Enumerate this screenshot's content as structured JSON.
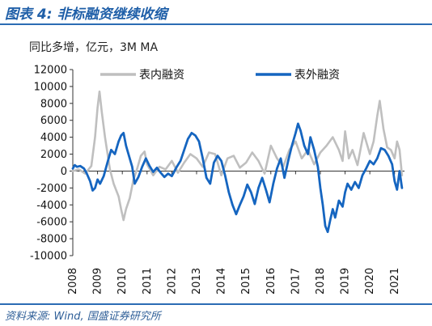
{
  "header": {
    "title": "图表 4: 非标融资继续收缩"
  },
  "footer": {
    "source": "资料来源: Wind, 国盛证券研究所"
  },
  "colors": {
    "accent": "#2b6cb4",
    "series_inner": "#bfbfbf",
    "series_outer": "#1565c0"
  },
  "chart_data": {
    "type": "line",
    "title": "图表 4: 非标融资继续收缩",
    "ylabel": "同比多增，亿元，3M MA",
    "xlabel": "",
    "ylim": [
      -10000,
      12000
    ],
    "xlim": [
      2008,
      2021.4
    ],
    "yticks": [
      12000,
      10000,
      8000,
      6000,
      4000,
      2000,
      0,
      -2000,
      -4000,
      -6000,
      -8000,
      -10000
    ],
    "xticks": [
      2008,
      2009,
      2010,
      2011,
      2012,
      2013,
      2014,
      2015,
      2016,
      2017,
      2018,
      2019,
      2020,
      2021
    ],
    "grid": false,
    "legend": {
      "placement": "top",
      "entries": [
        "表内融资",
        "表外融资"
      ]
    },
    "series": [
      {
        "name": "表内融资",
        "color": "#bfbfbf",
        "points": [
          [
            2008.0,
            0
          ],
          [
            2008.25,
            200
          ],
          [
            2008.5,
            -300
          ],
          [
            2008.75,
            600
          ],
          [
            2008.9,
            4000
          ],
          [
            2009.0,
            7500
          ],
          [
            2009.08,
            9400
          ],
          [
            2009.17,
            7000
          ],
          [
            2009.3,
            4000
          ],
          [
            2009.5,
            200
          ],
          [
            2009.65,
            -1500
          ],
          [
            2009.85,
            -3000
          ],
          [
            2009.95,
            -4500
          ],
          [
            2010.05,
            -5800
          ],
          [
            2010.15,
            -4500
          ],
          [
            2010.3,
            -3200
          ],
          [
            2010.45,
            -1000
          ],
          [
            2010.6,
            300
          ],
          [
            2010.75,
            1800
          ],
          [
            2010.9,
            2300
          ],
          [
            2011.0,
            800
          ],
          [
            2011.25,
            -500
          ],
          [
            2011.5,
            500
          ],
          [
            2011.75,
            200
          ],
          [
            2012.0,
            1200
          ],
          [
            2012.25,
            -200
          ],
          [
            2012.5,
            1000
          ],
          [
            2012.75,
            2000
          ],
          [
            2013.0,
            1500
          ],
          [
            2013.25,
            500
          ],
          [
            2013.5,
            2200
          ],
          [
            2013.75,
            2000
          ],
          [
            2014.0,
            -500
          ],
          [
            2014.25,
            1500
          ],
          [
            2014.5,
            1800
          ],
          [
            2014.75,
            400
          ],
          [
            2015.0,
            1000
          ],
          [
            2015.25,
            2200
          ],
          [
            2015.5,
            1200
          ],
          [
            2015.75,
            -300
          ],
          [
            2016.0,
            3000
          ],
          [
            2016.25,
            1500
          ],
          [
            2016.5,
            500
          ],
          [
            2016.75,
            2500
          ],
          [
            2017.0,
            3500
          ],
          [
            2017.25,
            1500
          ],
          [
            2017.5,
            2500
          ],
          [
            2017.75,
            800
          ],
          [
            2018.0,
            2200
          ],
          [
            2018.25,
            3000
          ],
          [
            2018.5,
            4000
          ],
          [
            2018.75,
            2500
          ],
          [
            2018.9,
            1200
          ],
          [
            2019.0,
            4700
          ],
          [
            2019.15,
            1500
          ],
          [
            2019.3,
            2500
          ],
          [
            2019.5,
            700
          ],
          [
            2019.75,
            4500
          ],
          [
            2020.0,
            2000
          ],
          [
            2020.15,
            3500
          ],
          [
            2020.3,
            6500
          ],
          [
            2020.4,
            8300
          ],
          [
            2020.55,
            5000
          ],
          [
            2020.7,
            2800
          ],
          [
            2020.85,
            2500
          ],
          [
            2021.0,
            1500
          ],
          [
            2021.1,
            3500
          ],
          [
            2021.2,
            2500
          ],
          [
            2021.3,
            -500
          ]
        ]
      },
      {
        "name": "表外融资",
        "color": "#1565c0",
        "points": [
          [
            2008.0,
            300
          ],
          [
            2008.08,
            700
          ],
          [
            2008.17,
            500
          ],
          [
            2008.3,
            600
          ],
          [
            2008.45,
            300
          ],
          [
            2008.55,
            -200
          ],
          [
            2008.7,
            -1200
          ],
          [
            2008.8,
            -2300
          ],
          [
            2008.9,
            -2000
          ],
          [
            2009.0,
            -1000
          ],
          [
            2009.1,
            -1500
          ],
          [
            2009.25,
            -600
          ],
          [
            2009.4,
            1000
          ],
          [
            2009.55,
            2500
          ],
          [
            2009.7,
            2000
          ],
          [
            2009.85,
            3500
          ],
          [
            2009.95,
            4200
          ],
          [
            2010.05,
            4500
          ],
          [
            2010.15,
            3000
          ],
          [
            2010.25,
            2000
          ],
          [
            2010.4,
            500
          ],
          [
            2010.5,
            -1500
          ],
          [
            2010.65,
            -700
          ],
          [
            2010.8,
            500
          ],
          [
            2010.95,
            1500
          ],
          [
            2011.1,
            600
          ],
          [
            2011.25,
            -100
          ],
          [
            2011.4,
            400
          ],
          [
            2011.55,
            -200
          ],
          [
            2011.7,
            -700
          ],
          [
            2011.85,
            -300
          ],
          [
            2012.0,
            -600
          ],
          [
            2012.2,
            500
          ],
          [
            2012.35,
            1200
          ],
          [
            2012.5,
            2500
          ],
          [
            2012.65,
            3800
          ],
          [
            2012.8,
            4500
          ],
          [
            2012.95,
            4200
          ],
          [
            2013.1,
            3500
          ],
          [
            2013.25,
            1500
          ],
          [
            2013.4,
            -800
          ],
          [
            2013.55,
            -1500
          ],
          [
            2013.7,
            1000
          ],
          [
            2013.85,
            1800
          ],
          [
            2014.0,
            1200
          ],
          [
            2014.15,
            -500
          ],
          [
            2014.3,
            -2500
          ],
          [
            2014.45,
            -4000
          ],
          [
            2014.6,
            -5100
          ],
          [
            2014.75,
            -4000
          ],
          [
            2014.9,
            -3000
          ],
          [
            2015.05,
            -1600
          ],
          [
            2015.2,
            -2500
          ],
          [
            2015.35,
            -3900
          ],
          [
            2015.5,
            -2000
          ],
          [
            2015.65,
            -800
          ],
          [
            2015.8,
            -2200
          ],
          [
            2015.95,
            -3700
          ],
          [
            2016.1,
            -1500
          ],
          [
            2016.25,
            300
          ],
          [
            2016.4,
            1500
          ],
          [
            2016.55,
            -800
          ],
          [
            2016.7,
            1200
          ],
          [
            2016.85,
            3000
          ],
          [
            2017.0,
            4500
          ],
          [
            2017.1,
            5600
          ],
          [
            2017.2,
            4800
          ],
          [
            2017.35,
            3000
          ],
          [
            2017.5,
            2000
          ],
          [
            2017.6,
            4000
          ],
          [
            2017.75,
            2500
          ],
          [
            2017.9,
            500
          ],
          [
            2018.0,
            -2000
          ],
          [
            2018.1,
            -4000
          ],
          [
            2018.2,
            -6500
          ],
          [
            2018.3,
            -7200
          ],
          [
            2018.4,
            -5800
          ],
          [
            2018.5,
            -4500
          ],
          [
            2018.6,
            -5500
          ],
          [
            2018.75,
            -3500
          ],
          [
            2018.9,
            -4200
          ],
          [
            2019.0,
            -2500
          ],
          [
            2019.1,
            -1500
          ],
          [
            2019.25,
            -2200
          ],
          [
            2019.4,
            -1300
          ],
          [
            2019.55,
            -2000
          ],
          [
            2019.7,
            -500
          ],
          [
            2019.85,
            300
          ],
          [
            2020.0,
            1200
          ],
          [
            2020.15,
            800
          ],
          [
            2020.3,
            1500
          ],
          [
            2020.45,
            2700
          ],
          [
            2020.6,
            2500
          ],
          [
            2020.75,
            1800
          ],
          [
            2020.9,
            800
          ],
          [
            2021.0,
            -1200
          ],
          [
            2021.1,
            -2200
          ],
          [
            2021.2,
            0
          ],
          [
            2021.3,
            -2000
          ]
        ]
      }
    ]
  }
}
